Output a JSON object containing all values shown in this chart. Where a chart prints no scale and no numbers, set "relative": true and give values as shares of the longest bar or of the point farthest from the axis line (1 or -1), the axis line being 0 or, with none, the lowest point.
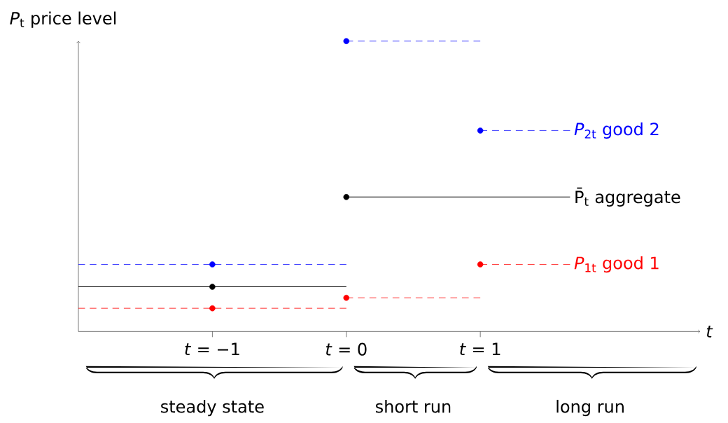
{
  "chart_data": {
    "type": "line",
    "relative": true,
    "xlabel": "t",
    "ylabel": "*P*$_{t}$ price level",
    "xlim": [
      -2,
      2.64
    ],
    "xticks": [
      {
        "value": -1,
        "label": "*t* = −1"
      },
      {
        "value": 0,
        "label": "*t* = 0"
      },
      {
        "value": 1,
        "label": "*t* = 1"
      }
    ],
    "series": [
      {
        "type": "line",
        "color": "#0000ff",
        "line_style": "dashed",
        "x": [
          -2,
          0
        ],
        "values": [
          0.231,
          0.231
        ]
      },
      {
        "type": "line",
        "color": "#0000ff",
        "line_style": "dashed",
        "x": [
          0,
          1
        ],
        "values": [
          1,
          1
        ]
      },
      {
        "type": "line",
        "name": "*P*$_{2t}$ good 2",
        "color": "#0000ff",
        "line_style": "dashed",
        "x": [
          1,
          1.67
        ],
        "values": [
          0.692,
          0.692
        ]
      },
      {
        "type": "line",
        "color": "#000000",
        "line_style": "solid",
        "x": [
          -2,
          0
        ],
        "values": [
          0.154,
          0.154
        ]
      },
      {
        "type": "line",
        "name": "P̄$_{t}$ aggregate",
        "color": "#000000",
        "line_style": "solid",
        "x": [
          0,
          1.67
        ],
        "values": [
          0.463,
          0.463
        ]
      },
      {
        "type": "line",
        "color": "#ff0000",
        "line_style": "dashed",
        "x": [
          -2,
          0
        ],
        "values": [
          0.08,
          0.08
        ]
      },
      {
        "type": "line",
        "color": "#ff0000",
        "line_style": "dashed",
        "x": [
          0,
          1
        ],
        "values": [
          0.116,
          0.116
        ]
      },
      {
        "type": "line",
        "name": "*P*$_{1t}$ good 1",
        "color": "#ff0000",
        "line_style": "dashed",
        "x": [
          1,
          1.67
        ],
        "values": [
          0.231,
          0.231
        ]
      },
      {
        "type": "scatter",
        "color": "#0000ff",
        "marker": "circle",
        "x": [
          -1,
          0,
          1
        ],
        "values": [
          0.231,
          1,
          0.692
        ]
      },
      {
        "type": "scatter",
        "color": "#000000",
        "marker": "circle",
        "x": [
          -1,
          0
        ],
        "values": [
          0.154,
          0.463
        ]
      },
      {
        "type": "scatter",
        "color": "#ff0000",
        "marker": "circle",
        "x": [
          -1,
          0,
          1
        ],
        "values": [
          0.08,
          0.116,
          0.231
        ]
      }
    ],
    "annotations": [
      "steady state",
      "short run",
      "long run"
    ]
  }
}
